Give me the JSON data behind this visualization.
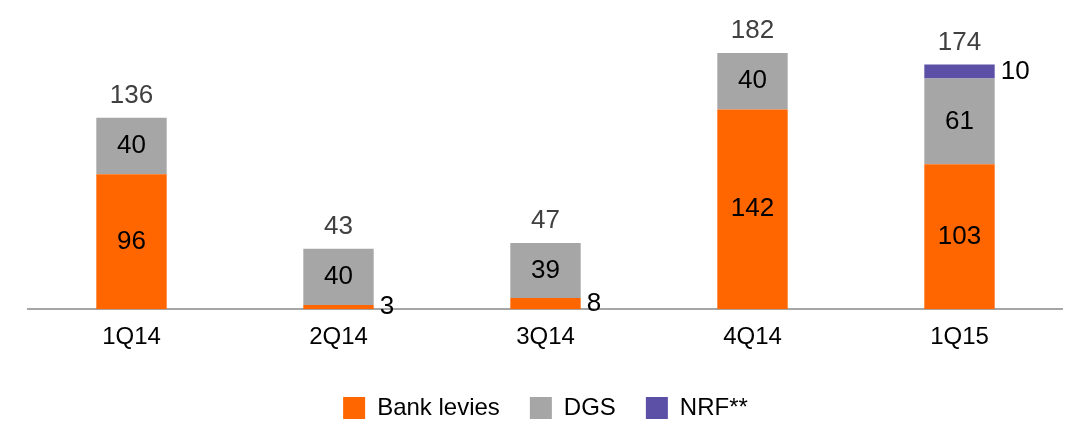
{
  "chart_data": {
    "type": "bar",
    "stacked": true,
    "categories": [
      "1Q14",
      "2Q14",
      "3Q14",
      "4Q14",
      "1Q15"
    ],
    "series": [
      {
        "name": "Bank levies",
        "color": "#ff6600",
        "values": [
          96,
          3,
          8,
          142,
          103
        ]
      },
      {
        "name": "DGS",
        "color": "#a6a6a6",
        "values": [
          40,
          40,
          39,
          40,
          61
        ]
      },
      {
        "name": "NRF**",
        "color": "#5b4fa6",
        "values": [
          null,
          null,
          null,
          null,
          10
        ]
      }
    ],
    "data_labels": true,
    "totals": [
      "136",
      "43",
      "47",
      "182",
      "174"
    ],
    "legend": "bottom",
    "grid": false
  }
}
